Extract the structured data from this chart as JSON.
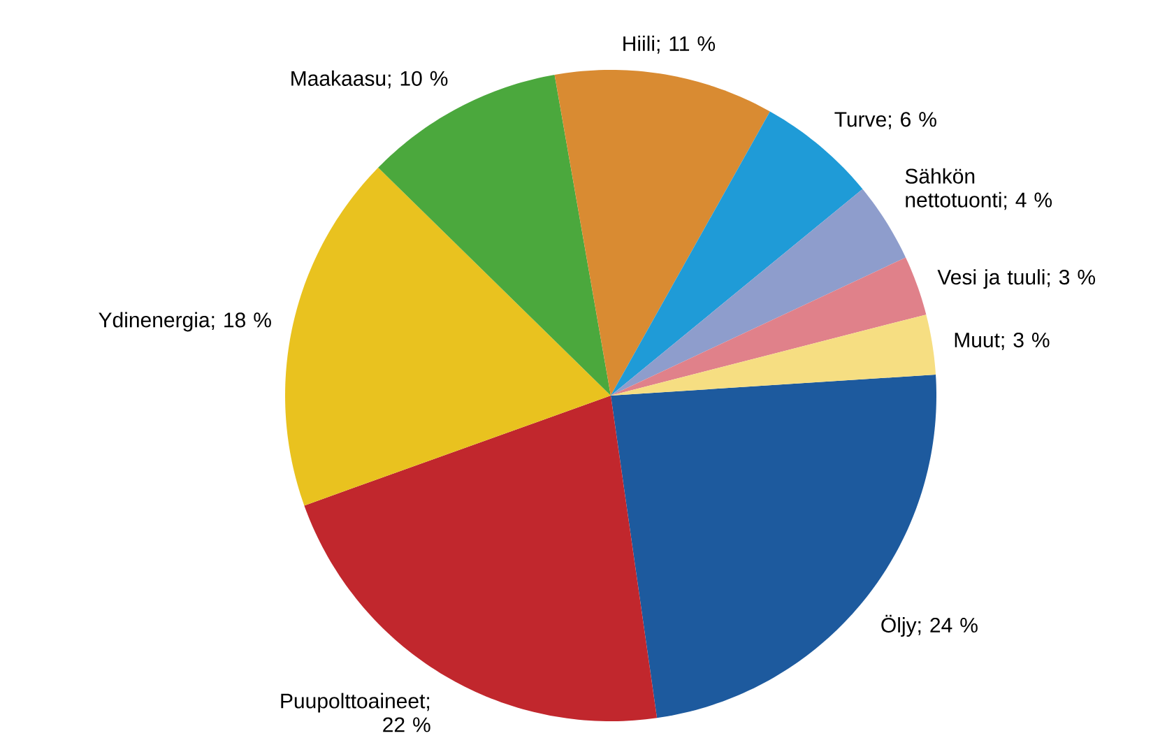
{
  "chart_data": {
    "type": "pie",
    "categories": [
      "Öljy; 24 %",
      "Puupolttoaineet; 22 %",
      "Ydinenergia; 18 %",
      "Maakaasu; 10 %",
      "Hiili; 11 %",
      "Turve; 6 %",
      "Sähkön nettotuonti; 4 %",
      "Vesi ja tuuli; 3 %",
      "Muut; 3 %"
    ],
    "values": [
      24,
      22,
      18,
      10,
      11,
      6,
      4,
      3,
      3
    ],
    "colors": [
      "#1d5a9e",
      "#c1272d",
      "#e9c21f",
      "#4ba83d",
      "#d98b32",
      "#1f9bd7",
      "#8e9dcc",
      "#e0818a",
      "#f6de82"
    ]
  }
}
